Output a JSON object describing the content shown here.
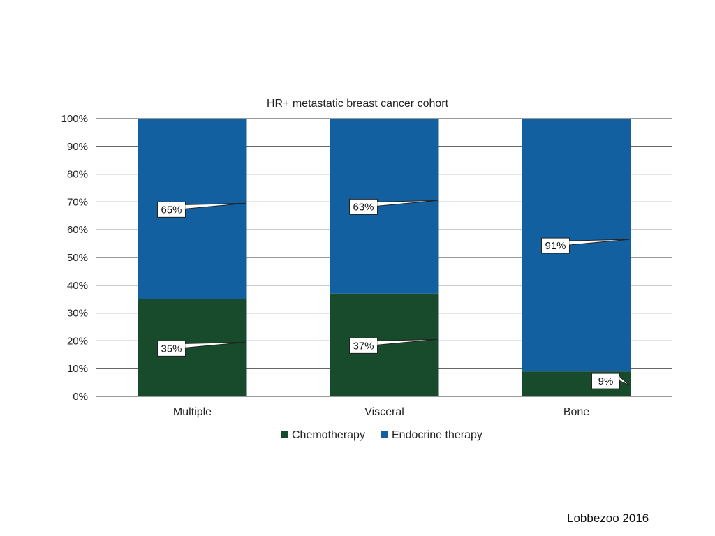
{
  "chart_data": {
    "type": "bar",
    "stacked": true,
    "title": "HR+ metastatic breast cancer cohort",
    "categories": [
      "Multiple",
      "Visceral",
      "Bone"
    ],
    "series": [
      {
        "name": "Chemotherapy",
        "color": "#184a2c",
        "values": [
          35,
          37,
          9
        ],
        "labels": [
          "35%",
          "37%",
          "9%"
        ]
      },
      {
        "name": "Endocrine therapy",
        "color": "#1360a0",
        "values": [
          65,
          63,
          91
        ],
        "labels": [
          "65%",
          "63%",
          "91%"
        ]
      }
    ],
    "ylim": [
      0,
      100
    ],
    "yticks": [
      "0%",
      "10%",
      "20%",
      "30%",
      "40%",
      "50%",
      "60%",
      "70%",
      "80%",
      "90%",
      "100%"
    ],
    "grid": true,
    "legend_position": "bottom"
  },
  "source": "Lobbezoo 2016"
}
